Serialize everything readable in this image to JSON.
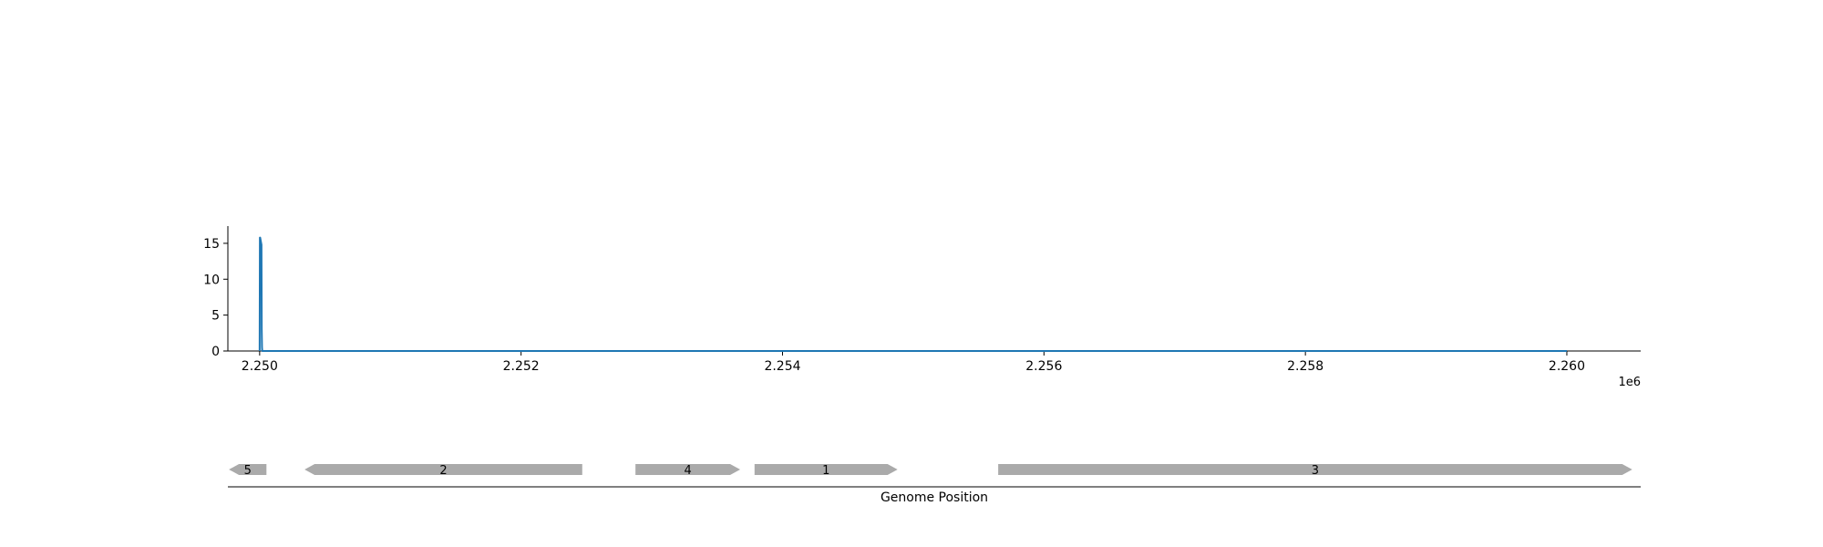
{
  "chart_data": [
    {
      "type": "line",
      "title": "",
      "xlabel": "",
      "ylabel": "",
      "x_offset_label": "1e6",
      "xlim": [
        2.249757,
        2.260565
      ],
      "ylim": [
        0,
        17.4
      ],
      "x_ticks": [
        2.25,
        2.252,
        2.254,
        2.256,
        2.258,
        2.26
      ],
      "x_tick_labels": [
        "2.250",
        "2.252",
        "2.254",
        "2.256",
        "2.258",
        "2.260"
      ],
      "y_ticks": [
        0,
        5,
        10,
        15
      ],
      "y_tick_labels": [
        "0",
        "5",
        "10",
        "15"
      ],
      "grid": false,
      "series": [
        {
          "color": "#1f77b4",
          "x": [
            2.25,
            2.250002,
            2.250004,
            2.250006,
            2.250008,
            2.25001,
            2.250012,
            2.250014,
            2.250016,
            2.250018,
            2.25002,
            2.2501,
            2.251,
            2.252,
            2.253,
            2.254,
            2.255,
            2.256,
            2.257,
            2.258,
            2.259,
            2.26
          ],
          "y": [
            0,
            15.8,
            15.8,
            15.6,
            15.4,
            15.2,
            15.0,
            14.8,
            3.0,
            0.5,
            0,
            0,
            0,
            0,
            0,
            0,
            0,
            0,
            0,
            0,
            0,
            0
          ]
        }
      ]
    },
    {
      "type": "gene-track",
      "xlabel": "Genome Position",
      "feature_color": "#aaaaaa",
      "genes": [
        {
          "label": "5",
          "start": 2.249765,
          "end": 2.250052,
          "strand": "-"
        },
        {
          "label": "2",
          "start": 2.250344,
          "end": 2.252468,
          "strand": "-"
        },
        {
          "label": "4",
          "start": 2.252875,
          "end": 2.253676,
          "strand": "+"
        },
        {
          "label": "1",
          "start": 2.253786,
          "end": 2.25488,
          "strand": "+"
        },
        {
          "label": "3",
          "start": 2.25565,
          "end": 2.2605,
          "strand": "+"
        }
      ]
    }
  ]
}
